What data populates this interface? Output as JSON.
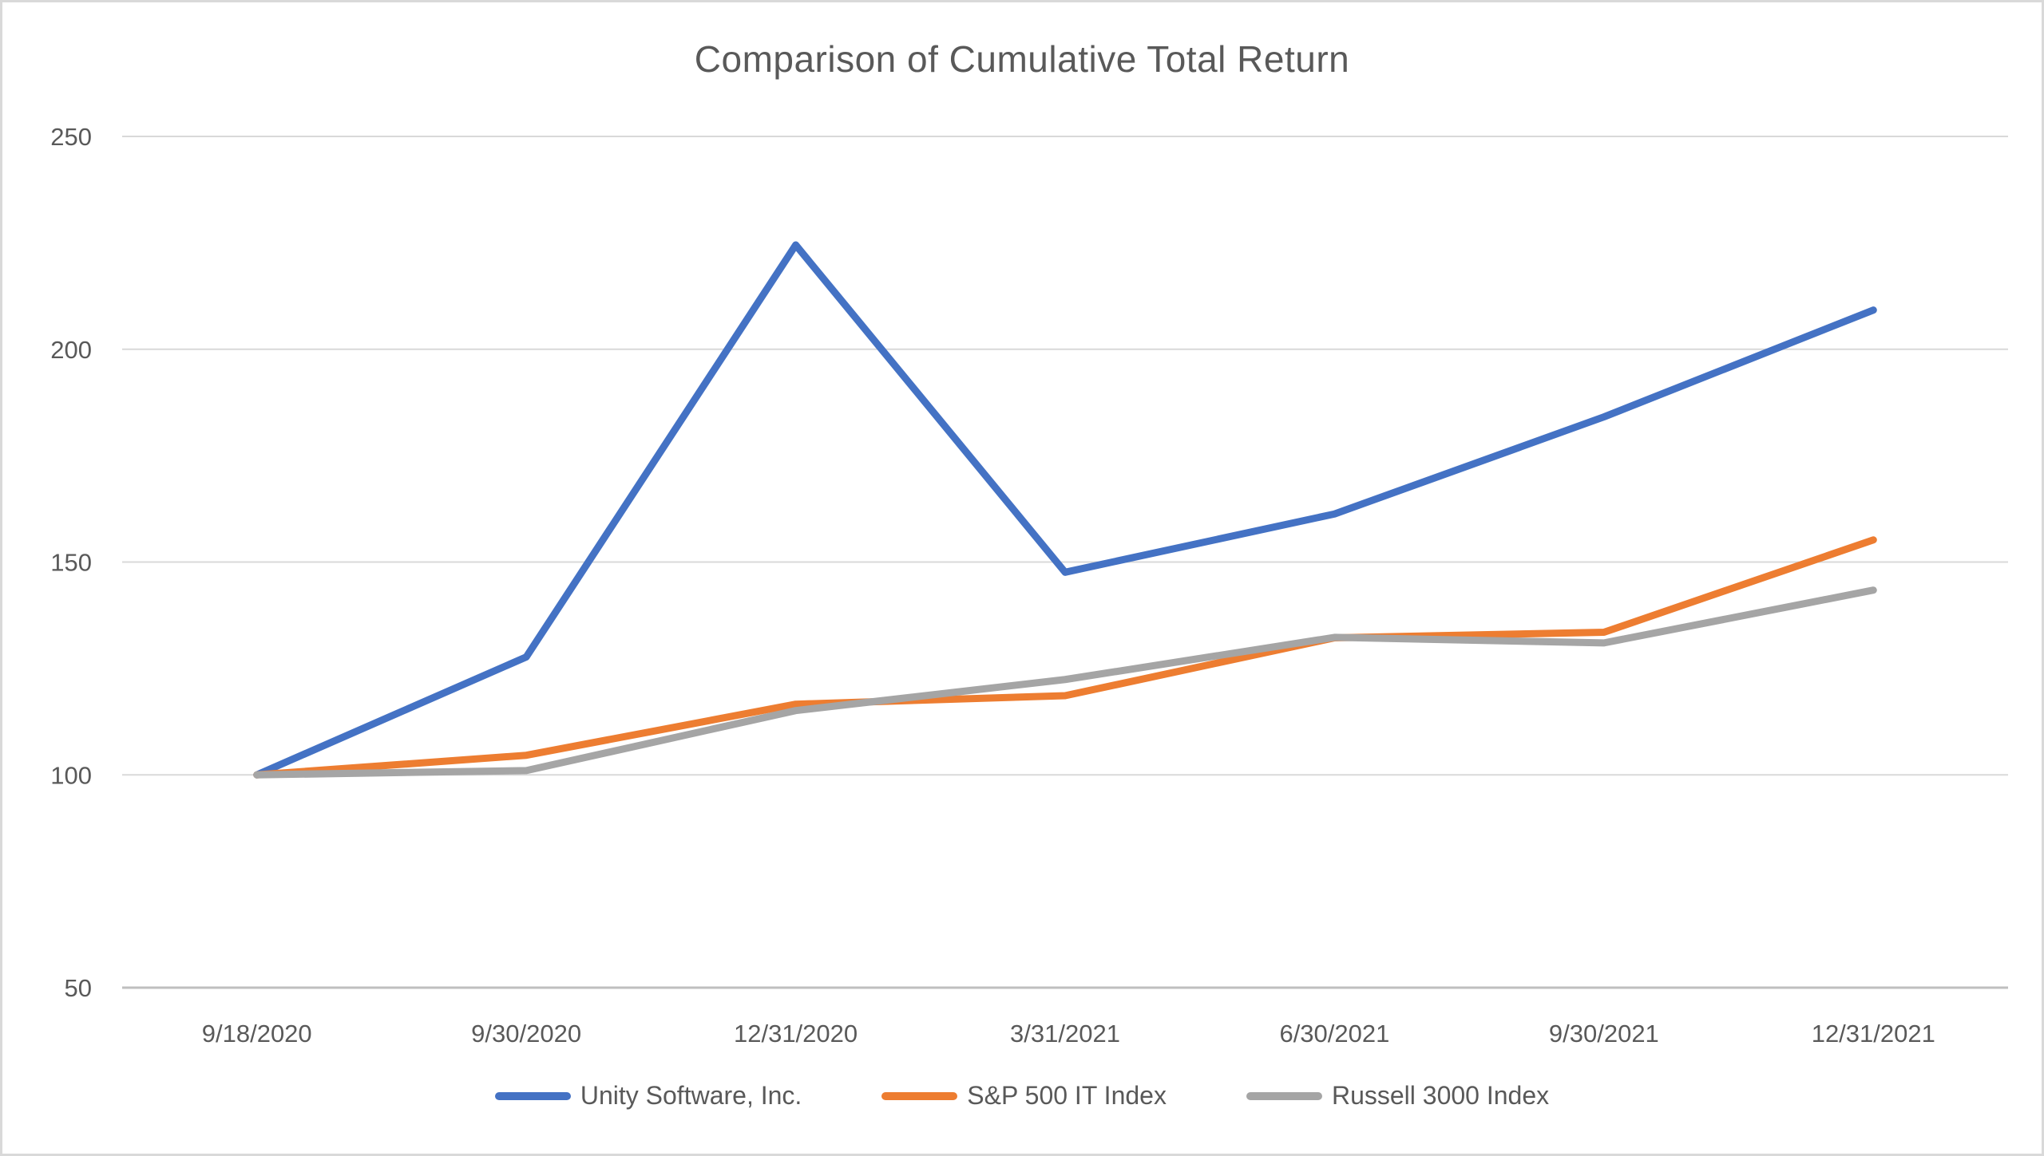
{
  "chart_data": {
    "type": "line",
    "title": "Comparison of Cumulative Total Return",
    "categories": [
      "9/18/2020",
      "9/30/2020",
      "12/31/2020",
      "3/31/2021",
      "6/30/2021",
      "9/30/2021",
      "12/31/2021"
    ],
    "series": [
      {
        "name": "Unity Software, Inc.",
        "color": "#4472C4",
        "values": [
          100,
          127.7,
          224.5,
          147.6,
          161.3,
          184.1,
          209.2
        ]
      },
      {
        "name": "S&P 500 IT Index",
        "color": "#ED7D31",
        "values": [
          100,
          104.6,
          116.6,
          118.6,
          132.2,
          133.5,
          155.2
        ]
      },
      {
        "name": "Russell 3000 Index",
        "color": "#A5A5A5",
        "values": [
          100,
          101.0,
          115.1,
          122.4,
          132.3,
          131.0,
          143.4
        ]
      }
    ],
    "xlabel": "",
    "ylabel": "",
    "ylim": [
      50,
      250
    ],
    "yticks": [
      50,
      100,
      150,
      200,
      250
    ],
    "grid": true,
    "legend_position": "bottom",
    "colors": {
      "text": "#595959",
      "gridline": "#D9D9D9",
      "axis_line": "#BFBFBF",
      "background": "#FFFFFF",
      "border": "#D9D9D9"
    }
  }
}
